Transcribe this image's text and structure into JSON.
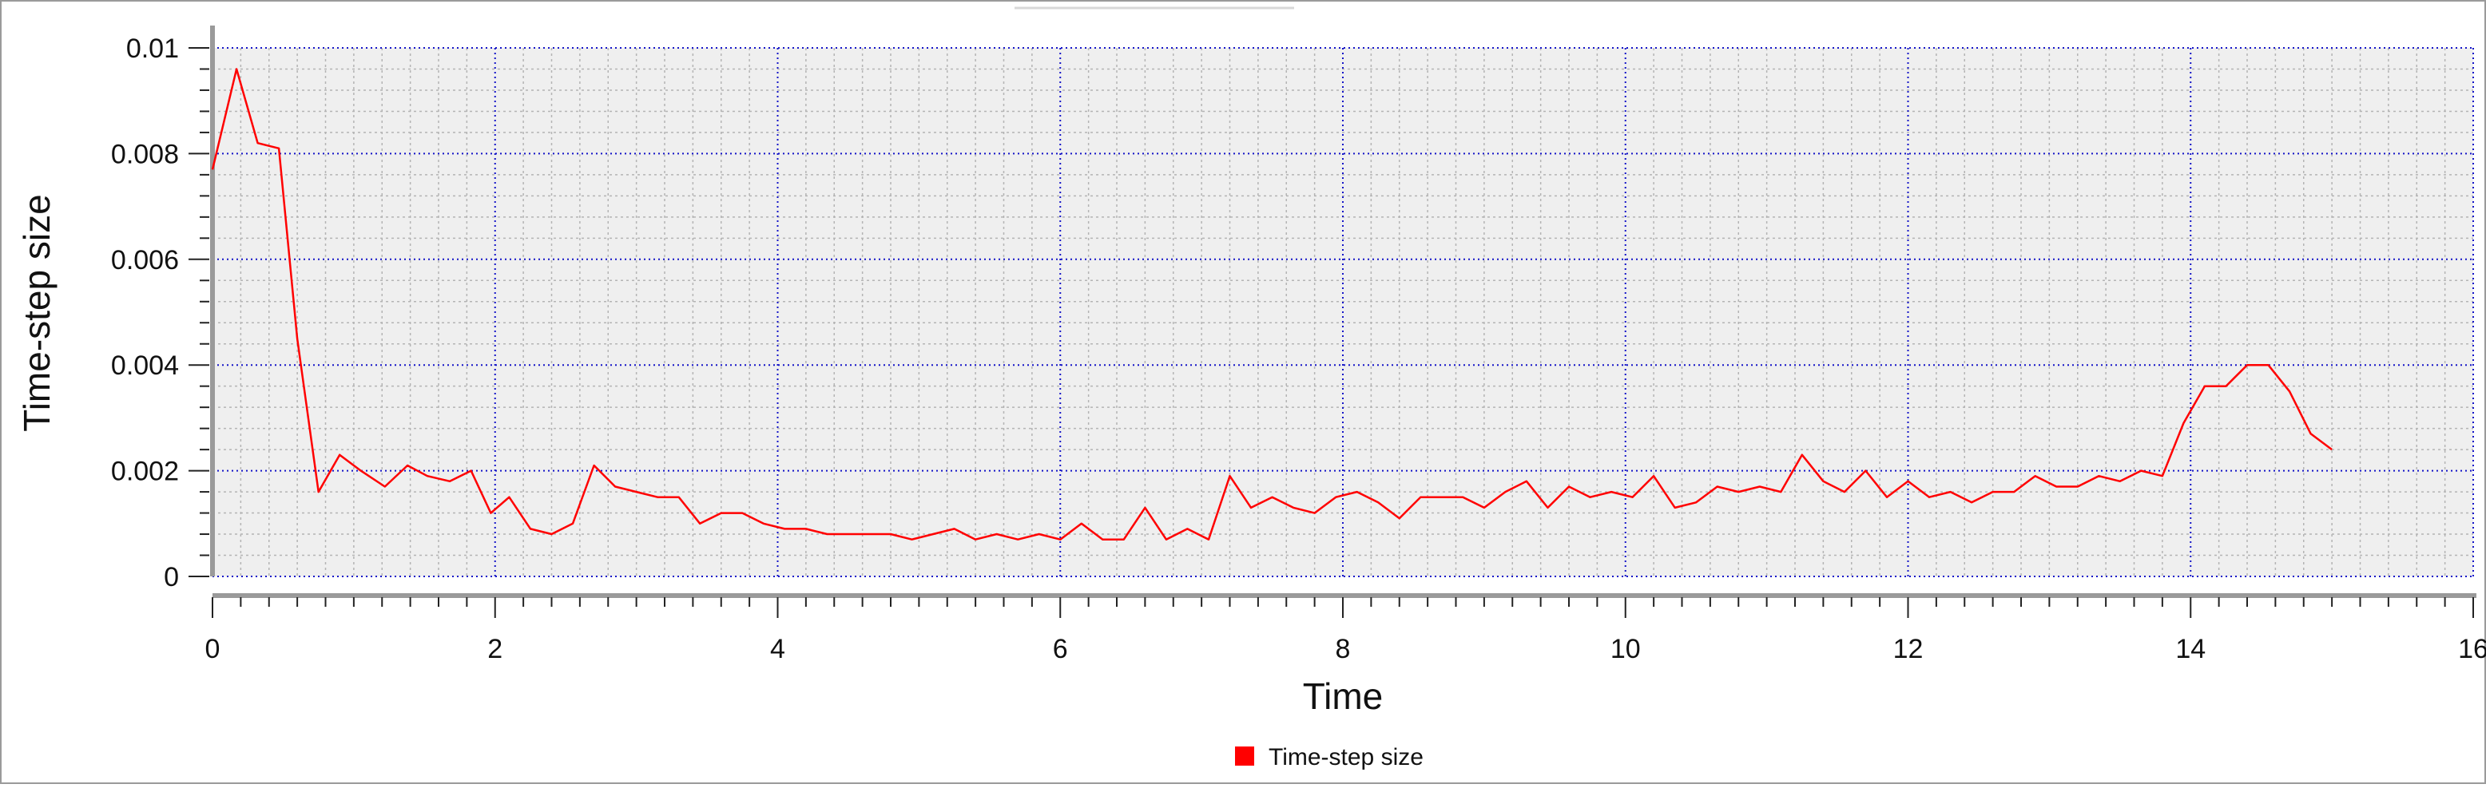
{
  "chart_data": {
    "type": "line",
    "title": "",
    "xlabel": "Time",
    "ylabel": "Time-step size",
    "xlim": [
      0,
      16
    ],
    "ylim": [
      0,
      0.01
    ],
    "xticks": [
      "0",
      "2",
      "4",
      "6",
      "8",
      "10",
      "12",
      "14",
      "16"
    ],
    "yticks": [
      "0",
      "0.002",
      "0.004",
      "0.006",
      "0.008",
      "0.01"
    ],
    "grid": true,
    "legend_position": "bottom-center",
    "colors": {
      "series": "#ff0000",
      "major_grid": "#1515c8",
      "minor_grid": "#b4b4b4",
      "plot_bg": "#efefef"
    },
    "series": [
      {
        "name": "Time-step size",
        "x": [
          0,
          0.17,
          0.32,
          0.47,
          0.6,
          0.75,
          0.9,
          1.05,
          1.22,
          1.38,
          1.52,
          1.68,
          1.83,
          1.97,
          2.1,
          2.25,
          2.4,
          2.55,
          2.7,
          2.85,
          3.0,
          3.15,
          3.3,
          3.45,
          3.6,
          3.75,
          3.9,
          4.05,
          4.2,
          4.35,
          4.5,
          4.65,
          4.8,
          4.95,
          5.1,
          5.25,
          5.4,
          5.55,
          5.7,
          5.85,
          6.0,
          6.15,
          6.3,
          6.45,
          6.6,
          6.75,
          6.9,
          7.05,
          7.2,
          7.35,
          7.5,
          7.65,
          7.8,
          7.95,
          8.1,
          8.25,
          8.4,
          8.55,
          8.7,
          8.85,
          9.0,
          9.15,
          9.3,
          9.45,
          9.6,
          9.75,
          9.9,
          10.05,
          10.2,
          10.35,
          10.5,
          10.65,
          10.8,
          10.95,
          11.1,
          11.25,
          11.4,
          11.55,
          11.7,
          11.85,
          12.0,
          12.15,
          12.3,
          12.45,
          12.6,
          12.75,
          12.9,
          13.05,
          13.2,
          13.35,
          13.5,
          13.65,
          13.8,
          13.95,
          14.1,
          14.25,
          14.4,
          14.55,
          14.7,
          14.85,
          15.0
        ],
        "y": [
          0.0077,
          0.0096,
          0.0082,
          0.0081,
          0.0045,
          0.0016,
          0.0023,
          0.002,
          0.0017,
          0.0021,
          0.0019,
          0.0018,
          0.002,
          0.0012,
          0.0015,
          0.0009,
          0.0008,
          0.001,
          0.0021,
          0.0017,
          0.0016,
          0.0015,
          0.0015,
          0.001,
          0.0012,
          0.0012,
          0.001,
          0.0009,
          0.0009,
          0.0008,
          0.0008,
          0.0008,
          0.0008,
          0.0007,
          0.0008,
          0.0009,
          0.0007,
          0.0008,
          0.0007,
          0.0008,
          0.0007,
          0.001,
          0.0007,
          0.0007,
          0.0013,
          0.0007,
          0.0009,
          0.0007,
          0.0019,
          0.0013,
          0.0015,
          0.0013,
          0.0012,
          0.0015,
          0.0016,
          0.0014,
          0.0011,
          0.0015,
          0.0015,
          0.0015,
          0.0013,
          0.0016,
          0.0018,
          0.0013,
          0.0017,
          0.0015,
          0.0016,
          0.0015,
          0.0019,
          0.0013,
          0.0014,
          0.0017,
          0.0016,
          0.0017,
          0.0016,
          0.0023,
          0.0018,
          0.0016,
          0.002,
          0.0015,
          0.0018,
          0.0015,
          0.0016,
          0.0014,
          0.0016,
          0.0016,
          0.0019,
          0.0017,
          0.0017,
          0.0019,
          0.0018,
          0.002,
          0.0019,
          0.0029,
          0.0036,
          0.0036,
          0.004,
          0.004,
          0.0035,
          0.0027,
          0.0024
        ]
      }
    ]
  }
}
